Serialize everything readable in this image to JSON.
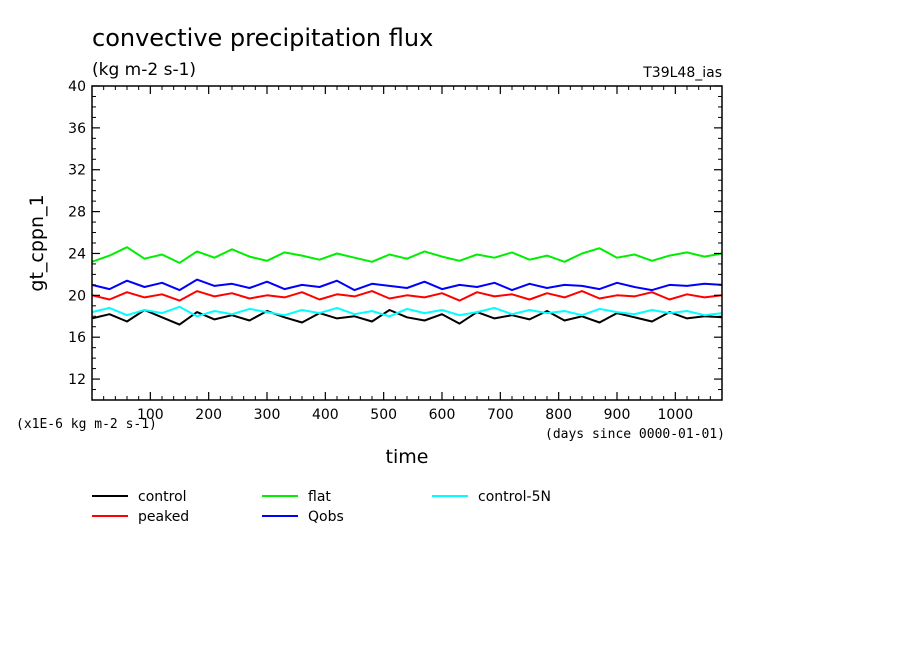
{
  "title": "convective precipitation flux",
  "subtitle": "(kg m-2 s-1)",
  "model_label": "T39L48_ias",
  "chart_data": {
    "type": "line",
    "xlabel": "time",
    "x_unit_note": "(days since 0000-01-01)",
    "ylabel": "gt_cppn_1",
    "y_scale_note": "(x1E-6 kg m-2 s-1)",
    "xlim": [
      0,
      1080
    ],
    "ylim": [
      10,
      40
    ],
    "x_ticks": [
      100,
      200,
      300,
      400,
      500,
      600,
      700,
      800,
      900,
      1000
    ],
    "x_tick_labels": [
      "100",
      "200",
      "300",
      "400",
      "500",
      "600",
      "700",
      "800",
      "900",
      "1000"
    ],
    "y_ticks": [
      12,
      16,
      20,
      24,
      28,
      32,
      36,
      40
    ],
    "y_tick_labels": [
      "12",
      "16",
      "20",
      "24",
      "28",
      "32",
      "36",
      "40"
    ],
    "grid": false,
    "legend_position": "bottom",
    "series": [
      {
        "name": "control",
        "color": "#000000",
        "x": [
          0,
          30,
          60,
          90,
          120,
          150,
          180,
          210,
          240,
          270,
          300,
          330,
          360,
          390,
          420,
          450,
          480,
          510,
          540,
          570,
          600,
          630,
          660,
          690,
          720,
          750,
          780,
          810,
          840,
          870,
          900,
          930,
          960,
          990,
          1020,
          1050,
          1080
        ],
        "y": [
          17.8,
          18.2,
          17.5,
          18.6,
          17.9,
          17.2,
          18.4,
          17.7,
          18.1,
          17.6,
          18.5,
          17.9,
          17.4,
          18.3,
          17.8,
          18.0,
          17.5,
          18.6,
          17.9,
          17.6,
          18.2,
          17.3,
          18.4,
          17.8,
          18.1,
          17.7,
          18.5,
          17.6,
          18.0,
          17.4,
          18.3,
          17.9,
          17.5,
          18.4,
          17.8,
          18.0,
          17.9
        ]
      },
      {
        "name": "peaked",
        "color": "#ff0000",
        "x": [
          0,
          30,
          60,
          90,
          120,
          150,
          180,
          210,
          240,
          270,
          300,
          330,
          360,
          390,
          420,
          450,
          480,
          510,
          540,
          570,
          600,
          630,
          660,
          690,
          720,
          750,
          780,
          810,
          840,
          870,
          900,
          930,
          960,
          990,
          1020,
          1050,
          1080
        ],
        "y": [
          20.0,
          19.6,
          20.3,
          19.8,
          20.1,
          19.5,
          20.4,
          19.9,
          20.2,
          19.7,
          20.0,
          19.8,
          20.3,
          19.6,
          20.1,
          19.9,
          20.4,
          19.7,
          20.0,
          19.8,
          20.2,
          19.5,
          20.3,
          19.9,
          20.1,
          19.6,
          20.2,
          19.8,
          20.4,
          19.7,
          20.0,
          19.9,
          20.3,
          19.6,
          20.1,
          19.8,
          20.0
        ]
      },
      {
        "name": "flat",
        "color": "#00ee00",
        "x": [
          0,
          30,
          60,
          90,
          120,
          150,
          180,
          210,
          240,
          270,
          300,
          330,
          360,
          390,
          420,
          450,
          480,
          510,
          540,
          570,
          600,
          630,
          660,
          690,
          720,
          750,
          780,
          810,
          840,
          870,
          900,
          930,
          960,
          990,
          1020,
          1050,
          1080
        ],
        "y": [
          23.2,
          23.8,
          24.6,
          23.5,
          23.9,
          23.1,
          24.2,
          23.6,
          24.4,
          23.7,
          23.3,
          24.1,
          23.8,
          23.4,
          24.0,
          23.6,
          23.2,
          23.9,
          23.5,
          24.2,
          23.7,
          23.3,
          23.9,
          23.6,
          24.1,
          23.4,
          23.8,
          23.2,
          24.0,
          24.5,
          23.6,
          23.9,
          23.3,
          23.8,
          24.1,
          23.7,
          24.0
        ]
      },
      {
        "name": "Qobs",
        "color": "#0000ff",
        "x": [
          0,
          30,
          60,
          90,
          120,
          150,
          180,
          210,
          240,
          270,
          300,
          330,
          360,
          390,
          420,
          450,
          480,
          510,
          540,
          570,
          600,
          630,
          660,
          690,
          720,
          750,
          780,
          810,
          840,
          870,
          900,
          930,
          960,
          990,
          1020,
          1050,
          1080
        ],
        "y": [
          21.0,
          20.6,
          21.4,
          20.8,
          21.2,
          20.5,
          21.5,
          20.9,
          21.1,
          20.7,
          21.3,
          20.6,
          21.0,
          20.8,
          21.4,
          20.5,
          21.1,
          20.9,
          20.7,
          21.3,
          20.6,
          21.0,
          20.8,
          21.2,
          20.5,
          21.1,
          20.7,
          21.0,
          20.9,
          20.6,
          21.2,
          20.8,
          20.5,
          21.0,
          20.9,
          21.1,
          21.0
        ]
      },
      {
        "name": "control-5N",
        "color": "#00ffff",
        "x": [
          0,
          30,
          60,
          90,
          120,
          150,
          180,
          210,
          240,
          270,
          300,
          330,
          360,
          390,
          420,
          450,
          480,
          510,
          540,
          570,
          600,
          630,
          660,
          690,
          720,
          750,
          780,
          810,
          840,
          870,
          900,
          930,
          960,
          990,
          1020,
          1050,
          1080
        ],
        "y": [
          18.4,
          18.8,
          18.1,
          18.6,
          18.3,
          18.9,
          18.0,
          18.5,
          18.2,
          18.7,
          18.4,
          18.1,
          18.6,
          18.3,
          18.8,
          18.2,
          18.5,
          18.0,
          18.7,
          18.3,
          18.6,
          18.1,
          18.4,
          18.8,
          18.2,
          18.6,
          18.3,
          18.5,
          18.1,
          18.7,
          18.4,
          18.2,
          18.6,
          18.3,
          18.5,
          18.1,
          18.3
        ]
      }
    ]
  }
}
